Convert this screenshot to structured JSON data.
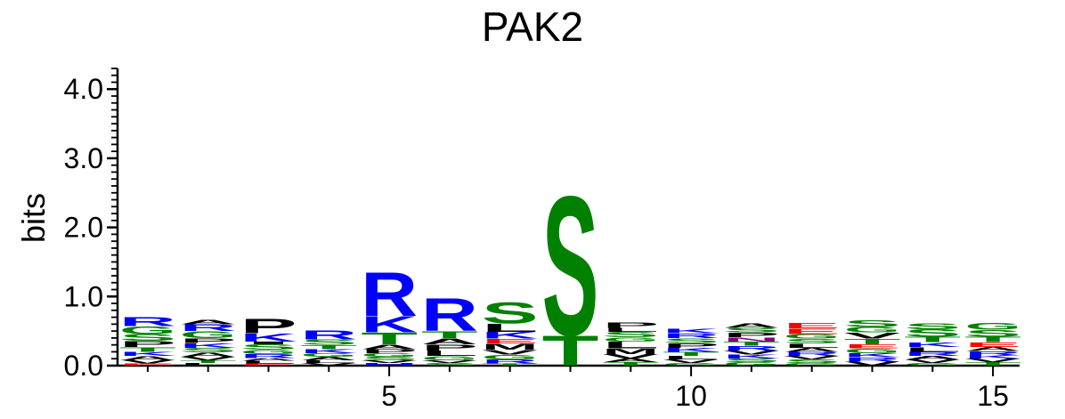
{
  "chart_data": {
    "type": "sequence-logo",
    "title": "PAK2",
    "ylabel": "bits",
    "xlabel": "",
    "ylim": [
      0,
      4.3
    ],
    "y_ticks": [
      "0.0",
      "1.0",
      "2.0",
      "3.0",
      "4.0"
    ],
    "x_ticks": [
      "5",
      "10",
      "15"
    ],
    "colors": {
      "R": "#0000ff",
      "K": "#0000ff",
      "H": "#0000ff",
      "S": "#008000",
      "T": "#008000",
      "G": "#008000",
      "C": "#008000",
      "Y": "#008000",
      "Q": "#008000",
      "N": "#800080",
      "A": "#000000",
      "P": "#000000",
      "L": "#000000",
      "M": "#000000",
      "I": "#000000",
      "V": "#000000",
      "F": "#000000",
      "W": "#000000",
      "D": "#ff0000",
      "E": "#ff0000"
    },
    "positions": [
      {
        "pos": 1,
        "letters": [
          [
            "E",
            0.03
          ],
          [
            "V",
            0.05
          ],
          [
            "A",
            0.06
          ],
          [
            "K",
            0.06
          ],
          [
            "T",
            0.07
          ],
          [
            "P",
            0.09
          ],
          [
            "S",
            0.1
          ],
          [
            "G",
            0.11
          ],
          [
            "R",
            0.14
          ]
        ]
      },
      {
        "pos": 2,
        "letters": [
          [
            "L",
            0.04
          ],
          [
            "T",
            0.04
          ],
          [
            "V",
            0.05
          ],
          [
            "A",
            0.06
          ],
          [
            "S",
            0.07
          ],
          [
            "K",
            0.07
          ],
          [
            "P",
            0.07
          ],
          [
            "G",
            0.1
          ],
          [
            "R",
            0.1
          ],
          [
            "A",
            0.07
          ]
        ]
      },
      {
        "pos": 3,
        "letters": [
          [
            "E",
            0.03
          ],
          [
            "L",
            0.04
          ],
          [
            "A",
            0.04
          ],
          [
            "R",
            0.06
          ],
          [
            "G",
            0.06
          ],
          [
            "S",
            0.08
          ],
          [
            "I",
            0.04
          ],
          [
            "K",
            0.12
          ],
          [
            "P",
            0.22
          ]
        ]
      },
      {
        "pos": 4,
        "letters": [
          [
            "V",
            0.04
          ],
          [
            "L",
            0.04
          ],
          [
            "A",
            0.05
          ],
          [
            "G",
            0.05
          ],
          [
            "K",
            0.06
          ],
          [
            "T",
            0.06
          ],
          [
            "S",
            0.08
          ],
          [
            "R",
            0.14
          ]
        ]
      },
      {
        "pos": 5,
        "letters": [
          [
            "H",
            0.04
          ],
          [
            "V",
            0.04
          ],
          [
            "S",
            0.05
          ],
          [
            "G",
            0.05
          ],
          [
            "P",
            0.06
          ],
          [
            "A",
            0.07
          ],
          [
            "T",
            0.17
          ],
          [
            "K",
            0.24
          ],
          [
            "R",
            0.66
          ]
        ]
      },
      {
        "pos": 6,
        "letters": [
          [
            "S",
            0.04
          ],
          [
            "V",
            0.04
          ],
          [
            "G",
            0.06
          ],
          [
            "L",
            0.08
          ],
          [
            "P",
            0.09
          ],
          [
            "A",
            0.09
          ],
          [
            "T",
            0.1
          ],
          [
            "R",
            0.5
          ]
        ]
      },
      {
        "pos": 7,
        "letters": [
          [
            "T",
            0.03
          ],
          [
            "R",
            0.06
          ],
          [
            "G",
            0.07
          ],
          [
            "V",
            0.07
          ],
          [
            "M",
            0.09
          ],
          [
            "E",
            0.07
          ],
          [
            "K",
            0.1
          ],
          [
            "L",
            0.12
          ],
          [
            "S",
            0.32
          ]
        ]
      },
      {
        "pos": 8,
        "letters": [
          [
            "T",
            0.45
          ],
          [
            "S",
            2.1
          ]
        ]
      },
      {
        "pos": 9,
        "letters": [
          [
            "T",
            0.05
          ],
          [
            "A",
            0.05
          ],
          [
            "V",
            0.07
          ],
          [
            "M",
            0.08
          ],
          [
            "L",
            0.1
          ],
          [
            "G",
            0.06
          ],
          [
            "S",
            0.08
          ],
          [
            "L",
            0.06
          ],
          [
            "P",
            0.08
          ]
        ]
      },
      {
        "pos": 10,
        "letters": [
          [
            "G",
            0.04
          ],
          [
            "V",
            0.05
          ],
          [
            "L",
            0.05
          ],
          [
            "T",
            0.06
          ],
          [
            "K",
            0.06
          ],
          [
            "P",
            0.07
          ],
          [
            "S",
            0.07
          ],
          [
            "R",
            0.07
          ],
          [
            "K",
            0.07
          ]
        ]
      },
      {
        "pos": 11,
        "letters": [
          [
            "G",
            0.05
          ],
          [
            "S",
            0.05
          ],
          [
            "K",
            0.06
          ],
          [
            "V",
            0.06
          ],
          [
            "R",
            0.07
          ],
          [
            "T",
            0.06
          ],
          [
            "N",
            0.06
          ],
          [
            "P",
            0.07
          ],
          [
            "S",
            0.07
          ],
          [
            "A",
            0.07
          ]
        ]
      },
      {
        "pos": 12,
        "letters": [
          [
            "G",
            0.04
          ],
          [
            "S",
            0.05
          ],
          [
            "V",
            0.05
          ],
          [
            "R",
            0.06
          ],
          [
            "A",
            0.06
          ],
          [
            "L",
            0.06
          ],
          [
            "S",
            0.07
          ],
          [
            "G",
            0.07
          ],
          [
            "E",
            0.08
          ],
          [
            "E",
            0.08
          ]
        ]
      },
      {
        "pos": 13,
        "letters": [
          [
            "V",
            0.06
          ],
          [
            "R",
            0.06
          ],
          [
            "K",
            0.06
          ],
          [
            "G",
            0.07
          ],
          [
            "E",
            0.06
          ],
          [
            "T",
            0.08
          ],
          [
            "V",
            0.09
          ],
          [
            "G",
            0.08
          ],
          [
            "S",
            0.1
          ]
        ]
      },
      {
        "pos": 14,
        "letters": [
          [
            "G",
            0.04
          ],
          [
            "V",
            0.05
          ],
          [
            "A",
            0.05
          ],
          [
            "R",
            0.06
          ],
          [
            "L",
            0.07
          ],
          [
            "K",
            0.07
          ],
          [
            "T",
            0.08
          ],
          [
            "S",
            0.11
          ],
          [
            "S",
            0.09
          ]
        ]
      },
      {
        "pos": 15,
        "letters": [
          [
            "T",
            0.05
          ],
          [
            "V",
            0.05
          ],
          [
            "K",
            0.05
          ],
          [
            "R",
            0.06
          ],
          [
            "A",
            0.06
          ],
          [
            "E",
            0.07
          ],
          [
            "T",
            0.08
          ],
          [
            "S",
            0.1
          ],
          [
            "G",
            0.1
          ]
        ]
      }
    ]
  }
}
